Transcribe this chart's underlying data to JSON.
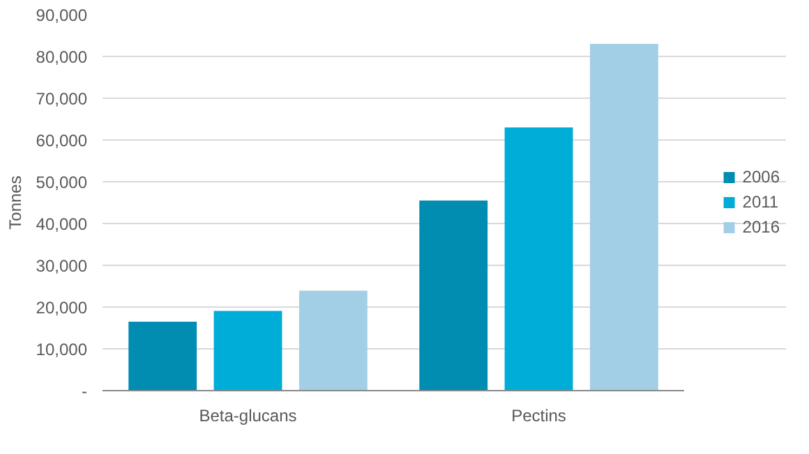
{
  "chart_data": {
    "type": "bar",
    "ylabel": "Tonnes",
    "categories": [
      "Beta-glucans",
      "Pectins"
    ],
    "series": [
      {
        "name": "2006",
        "color": "#008db1",
        "values": [
          16500,
          45500
        ]
      },
      {
        "name": "2011",
        "color": "#00acd8",
        "values": [
          19100,
          63000
        ]
      },
      {
        "name": "2016",
        "color": "#a2cfe6",
        "values": [
          23900,
          83000
        ]
      }
    ],
    "ylim": [
      0,
      90000
    ],
    "yticks": [
      {
        "value": 0,
        "label": "-"
      },
      {
        "value": 10000,
        "label": "10,000"
      },
      {
        "value": 20000,
        "label": "20,000"
      },
      {
        "value": 30000,
        "label": "30,000"
      },
      {
        "value": 40000,
        "label": "40,000"
      },
      {
        "value": 50000,
        "label": "50,000"
      },
      {
        "value": 60000,
        "label": "60,000"
      },
      {
        "value": 70000,
        "label": "70,000"
      },
      {
        "value": 80000,
        "label": "80,000"
      },
      {
        "value": 90000,
        "label": "90,000"
      }
    ],
    "grid": "y",
    "legend": "right"
  }
}
